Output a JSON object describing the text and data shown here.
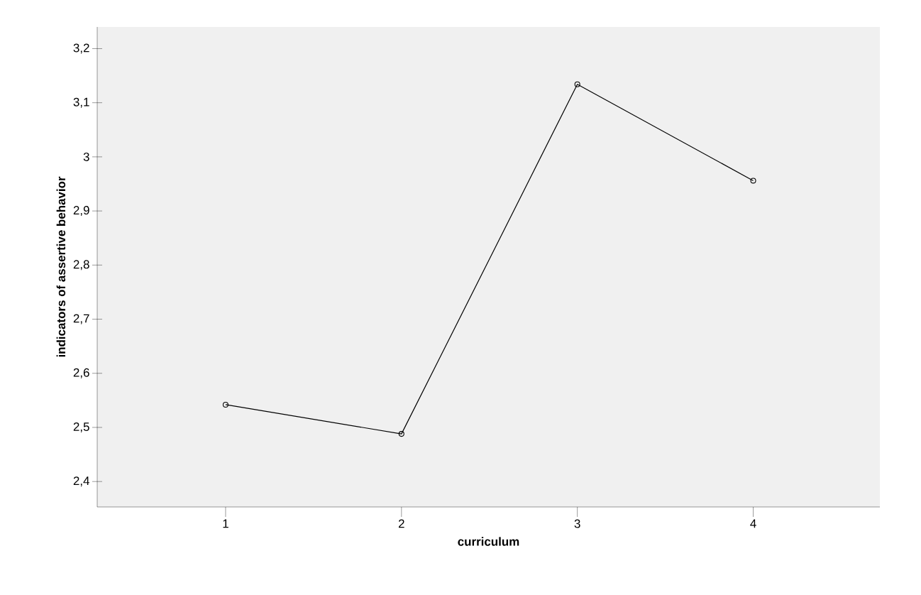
{
  "chart_data": {
    "type": "line",
    "xlabel": "curriculum",
    "ylabel": "indicators of assertive behavior",
    "x": [
      1,
      2,
      3,
      4
    ],
    "series": [
      {
        "color": "#000000",
        "values": [
          2.542,
          2.488,
          3.134,
          2.956
        ]
      }
    ],
    "xlim": [
      0.27,
      4.72
    ],
    "ylim": [
      2.353,
      3.24
    ],
    "xticks": [
      1,
      2,
      3,
      4
    ],
    "yticks": [
      {
        "value": 2.4,
        "label": "2,4"
      },
      {
        "value": 2.5,
        "label": "2,5"
      },
      {
        "value": 2.6,
        "label": "2,6"
      },
      {
        "value": 2.7,
        "label": "2,7"
      },
      {
        "value": 2.8,
        "label": "2,8"
      },
      {
        "value": 2.9,
        "label": "2,9"
      },
      {
        "value": 3.0,
        "label": "3"
      },
      {
        "value": 3.1,
        "label": "3,1"
      },
      {
        "value": 3.2,
        "label": "3,2"
      }
    ],
    "marker": "circle",
    "line_style": "solid"
  }
}
